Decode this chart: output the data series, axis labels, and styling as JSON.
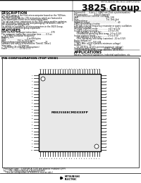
{
  "bg_color": "#ffffff",
  "title_small": "MITSUBISHI MICROCOMPUTERS",
  "title_large": "3825 Group",
  "subtitle": "SINGLE-CHIP 8-BIT CMOS MICROCOMPUTER",
  "section_description": "DESCRIPTION",
  "section_features": "FEATURES",
  "section_applications": "APPLICATIONS",
  "section_pin_config": "PIN CONFIGURATION (TOP VIEW)",
  "chip_label": "M38255E8CMDXXXFP",
  "package_text": "Package type : 100P4B-A (100 pin plastic molded QFP)",
  "fig_line1": "Fig. 1 PIN CONFIGURATION of M38255E8MFS*",
  "fig_line2": "    (See pin configuration of M38255 in reverse side.)"
}
